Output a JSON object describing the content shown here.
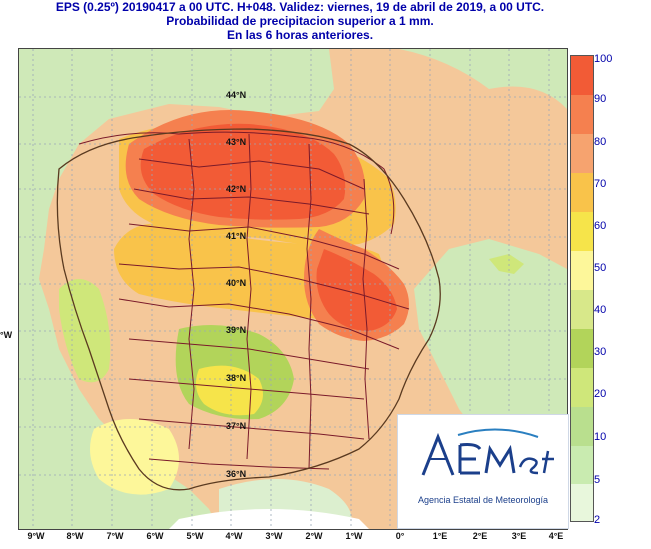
{
  "header": {
    "line1": "EPS (0.25º) 20190417 a 00 UTC.  H+048. Validez: viernes, 19 de abril de 2019,  a  00 UTC.",
    "line2": "Probabilidad de precipitacion superior a 1 mm.",
    "line3": "En las 6 horas anteriores."
  },
  "map": {
    "lat_labels": [
      "44°N",
      "43°N",
      "42°N",
      "41°N",
      "40°N",
      "39°N",
      "38°N",
      "37°N",
      "36°N"
    ],
    "lon_labels": [
      "9°W",
      "8°W",
      "7°W",
      "6°W",
      "5°W",
      "4°W",
      "3°W",
      "2°W",
      "1°W",
      "0°",
      "1°E",
      "2°E",
      "3°E",
      "4°E"
    ],
    "side_label": "°W"
  },
  "legend": {
    "labels": [
      "100",
      "90",
      "80",
      "70",
      "60",
      "50",
      "40",
      "30",
      "20",
      "10",
      "5",
      "2"
    ],
    "colors": [
      "#f25b36",
      "#f5804f",
      "#f6a36f",
      "#f9c34a",
      "#f6e44a",
      "#fdf79a",
      "#d8e88a",
      "#b2d45a",
      "#cfe77a",
      "#b9df8e",
      "#c9ebb0",
      "#e8f7dc"
    ]
  },
  "logo": {
    "name": "AEMet",
    "subtitle": "Agencia Estatal de Meteorología"
  }
}
